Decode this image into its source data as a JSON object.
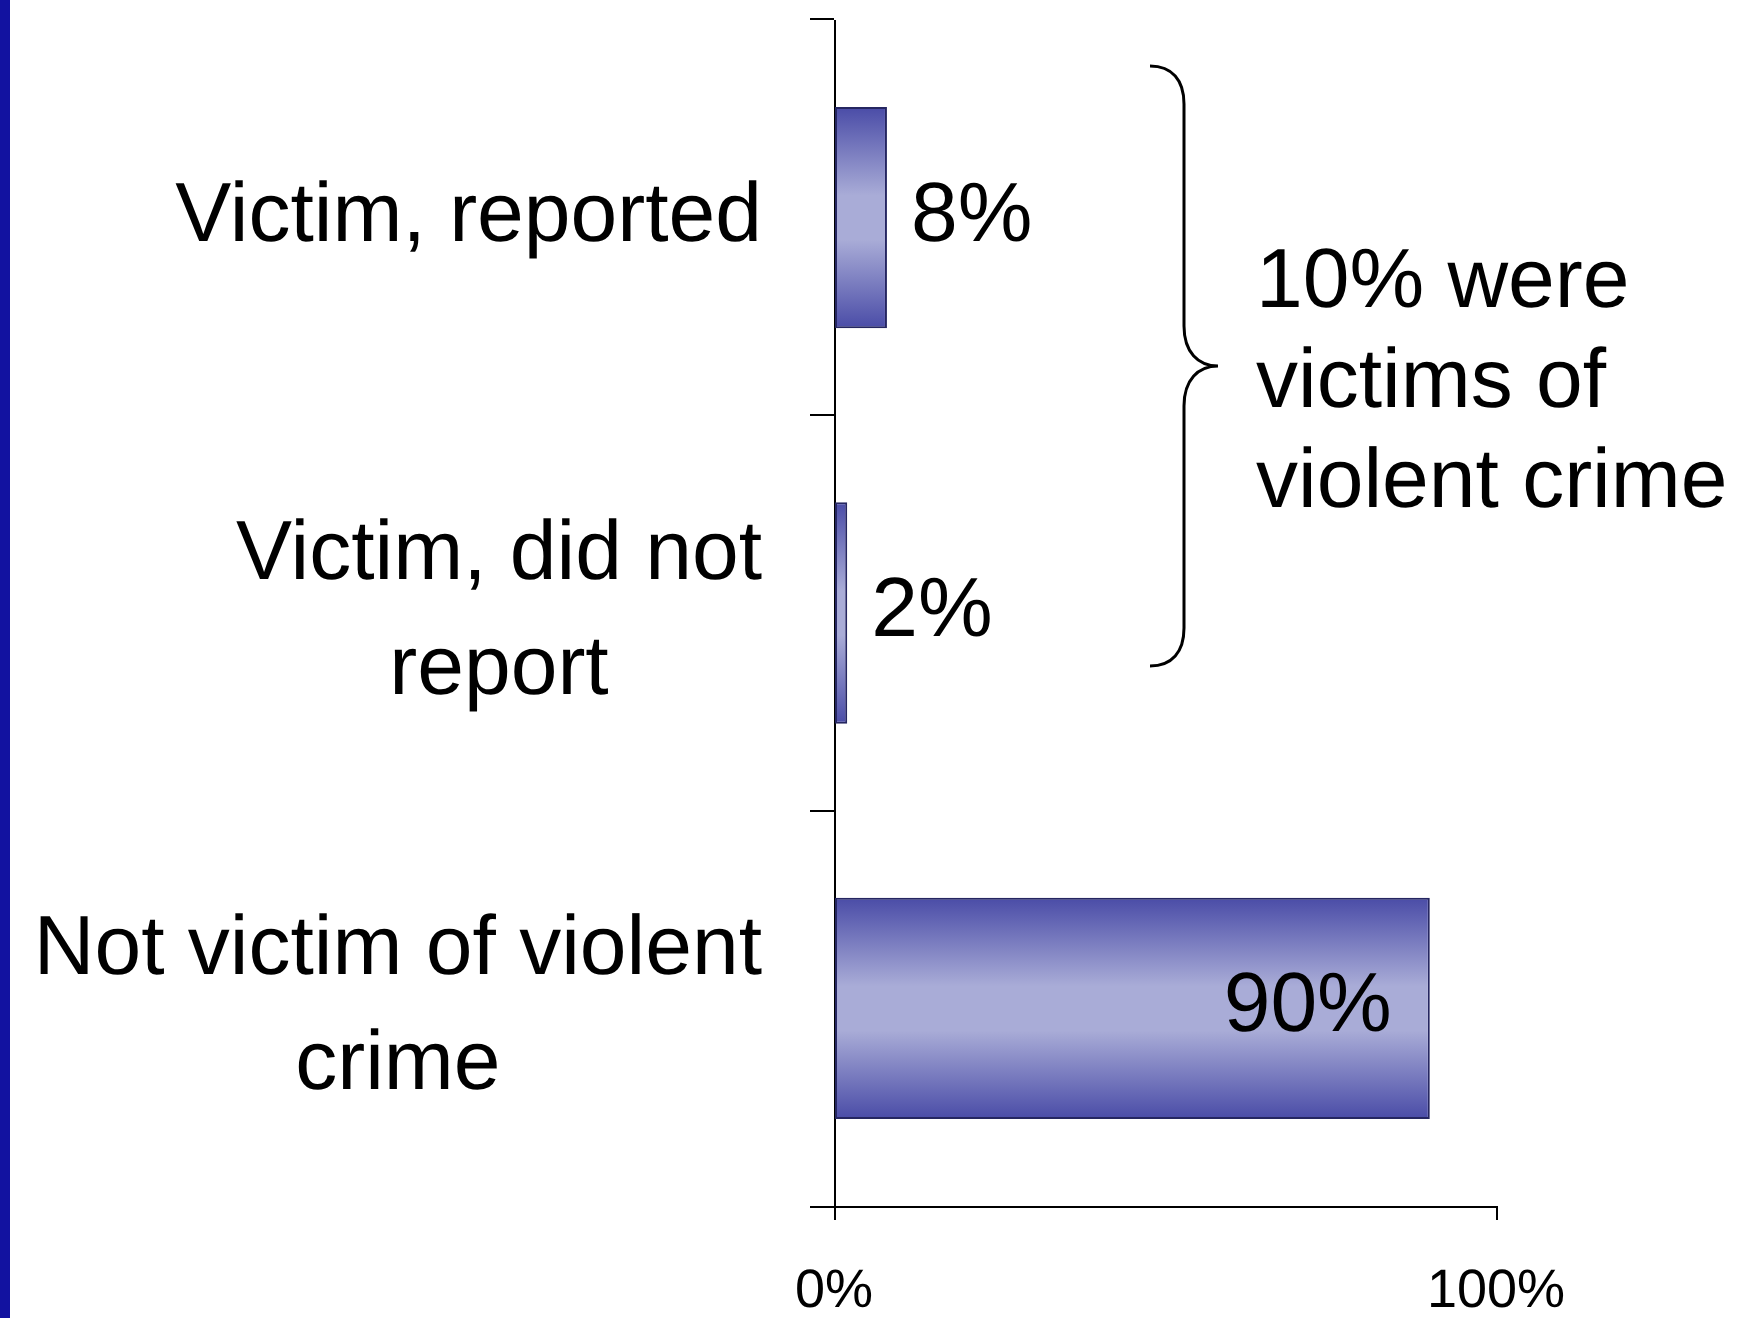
{
  "chart_data": {
    "type": "bar",
    "orientation": "horizontal",
    "categories": [
      "Victim, reported",
      "Victim, did not report",
      "Not victim of violent crime"
    ],
    "values": [
      8,
      2,
      90
    ],
    "color": "#7b7fc2",
    "value_labels": [
      "8%",
      "2%",
      "90%"
    ],
    "xlim": [
      0,
      100
    ],
    "xticks": [
      {
        "value": 0,
        "label": "0%"
      },
      {
        "value": 100,
        "label": "100%"
      }
    ],
    "grid": false,
    "legend": false,
    "annotations": [
      "10% were victims of violent crime"
    ]
  }
}
